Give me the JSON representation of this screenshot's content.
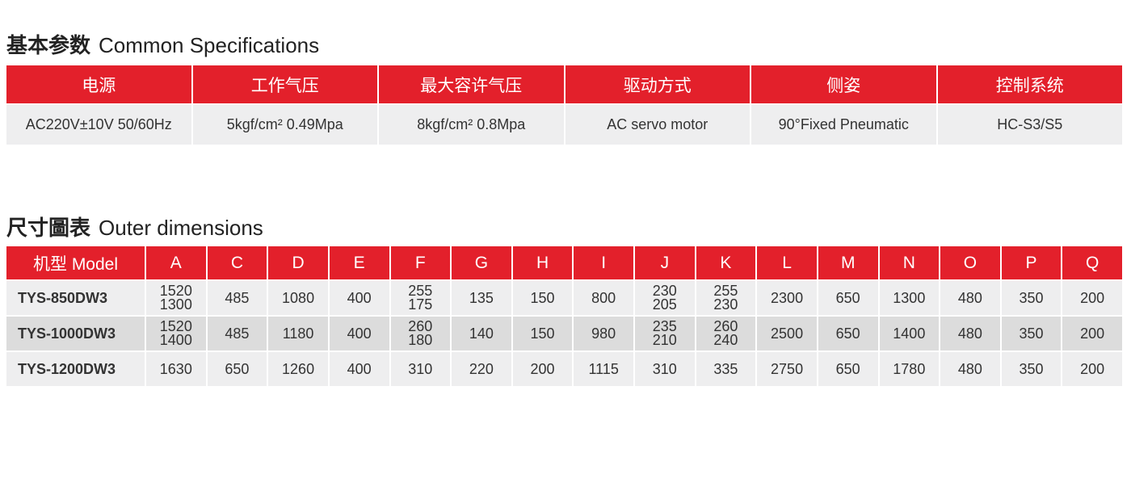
{
  "spec_section": {
    "title_cn": "基本参数",
    "title_en": "Common Specifications",
    "headers": [
      "电源",
      "工作气压",
      "最大容许气压",
      "驱动方式",
      "侧姿",
      "控制系统"
    ],
    "values": [
      "AC220V±10V 50/60Hz",
      "5kgf/cm² 0.49Mpa",
      "8kgf/cm² 0.8Mpa",
      "AC servo motor",
      "90°Fixed Pneumatic",
      "HC-S3/S5"
    ]
  },
  "dim_section": {
    "title_cn": "尺寸圖表",
    "title_en": "Outer dimensions",
    "headers": [
      "机型 Model",
      "A",
      "C",
      "D",
      "E",
      "F",
      "G",
      "H",
      "I",
      "J",
      "K",
      "L",
      "M",
      "N",
      "O",
      "P",
      "Q"
    ],
    "rows": [
      [
        "TYS-850DW3",
        "1520\n1300",
        "485",
        "1080",
        "400",
        "255\n175",
        "135",
        "150",
        "800",
        "230\n205",
        "255\n230",
        "2300",
        "650",
        "1300",
        "480",
        "350",
        "200"
      ],
      [
        "TYS-1000DW3",
        "1520\n1400",
        "485",
        "1180",
        "400",
        "260\n180",
        "140",
        "150",
        "980",
        "235\n210",
        "260\n240",
        "2500",
        "650",
        "1400",
        "480",
        "350",
        "200"
      ],
      [
        "TYS-1200DW3",
        "1630",
        "650",
        "1260",
        "400",
        "310",
        "220",
        "200",
        "1115",
        "310",
        "335",
        "2750",
        "650",
        "1780",
        "480",
        "350",
        "200"
      ]
    ]
  },
  "colors": {
    "header_red": "#e3202b",
    "row_light": "#eeeeef",
    "row_dark": "#dcdcdc"
  }
}
